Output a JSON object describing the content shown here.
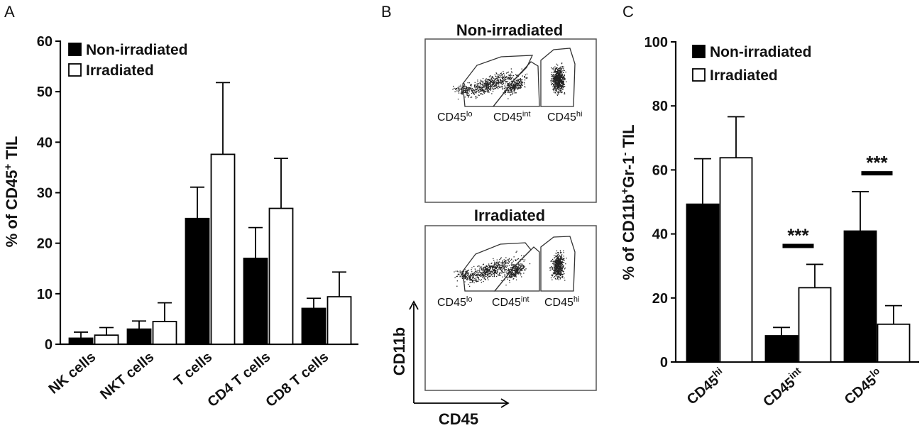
{
  "panels": {
    "a": {
      "letter": "A"
    },
    "b": {
      "letter": "B"
    },
    "c": {
      "letter": "C"
    }
  },
  "chart_data": [
    {
      "type": "bar",
      "panel": "A",
      "title": "",
      "ylabel": "% of CD45+ TIL",
      "ylabel_parts": {
        "pre": "% of CD45",
        "sup": "+",
        "post": " TIL"
      },
      "xlabel": "",
      "ylim": [
        0,
        60
      ],
      "yticks": [
        0,
        10,
        20,
        30,
        40,
        50,
        60
      ],
      "categories": [
        "NK cells",
        "NKT cells",
        "T cells",
        "CD4 T cells",
        "CD8 T cells"
      ],
      "series": [
        {
          "name": "Non-irradiated",
          "color": "#000000",
          "values": [
            1.2,
            3.0,
            24.9,
            17.0,
            7.1
          ],
          "errors": [
            1.2,
            1.6,
            6.2,
            6.1,
            2.0
          ]
        },
        {
          "name": "Irradiated",
          "color": "#ffffff",
          "values": [
            1.8,
            4.5,
            37.6,
            26.9,
            9.4
          ],
          "errors": [
            1.5,
            3.7,
            14.2,
            9.9,
            4.9
          ]
        }
      ],
      "legend": [
        "Non-irradiated",
        "Irradiated"
      ],
      "legend_position": "top-left"
    },
    {
      "type": "bar",
      "panel": "C",
      "title": "",
      "ylabel": "% of CD11b+Gr-1- TIL",
      "ylabel_parts": {
        "a": "% of CD11b",
        "sup1": "+",
        "b": "Gr-1",
        "sup2": "-",
        "c": " TIL"
      },
      "xlabel": "",
      "ylim": [
        0,
        100
      ],
      "yticks": [
        0,
        20,
        40,
        60,
        80,
        100
      ],
      "categories": [
        "CD45hi",
        "CD45int",
        "CD45lo"
      ],
      "category_parts": [
        {
          "base": "CD45",
          "sup": "hi"
        },
        {
          "base": "CD45",
          "sup": "int"
        },
        {
          "base": "CD45",
          "sup": "lo"
        }
      ],
      "series": [
        {
          "name": "Non-irradiated",
          "color": "#000000",
          "values": [
            49.3,
            8.2,
            40.9
          ],
          "errors": [
            14.2,
            2.6,
            12.3
          ]
        },
        {
          "name": "Irradiated",
          "color": "#ffffff",
          "values": [
            63.8,
            23.2,
            11.8
          ],
          "errors": [
            12.8,
            7.3,
            5.8
          ]
        }
      ],
      "annotations": [
        "",
        "***",
        "***"
      ],
      "legend": [
        "Non-irradiated",
        "Irradiated"
      ],
      "legend_position": "top-left"
    }
  ],
  "flow": {
    "non_irradiated_title": "Non-irradiated",
    "irradiated_title": "Irradiated",
    "gates": [
      {
        "base": "CD45",
        "sup": "lo"
      },
      {
        "base": "CD45",
        "sup": "int"
      },
      {
        "base": "CD45",
        "sup": "hi"
      }
    ],
    "y_axis_label": "CD11b",
    "x_axis_label": "CD45"
  }
}
